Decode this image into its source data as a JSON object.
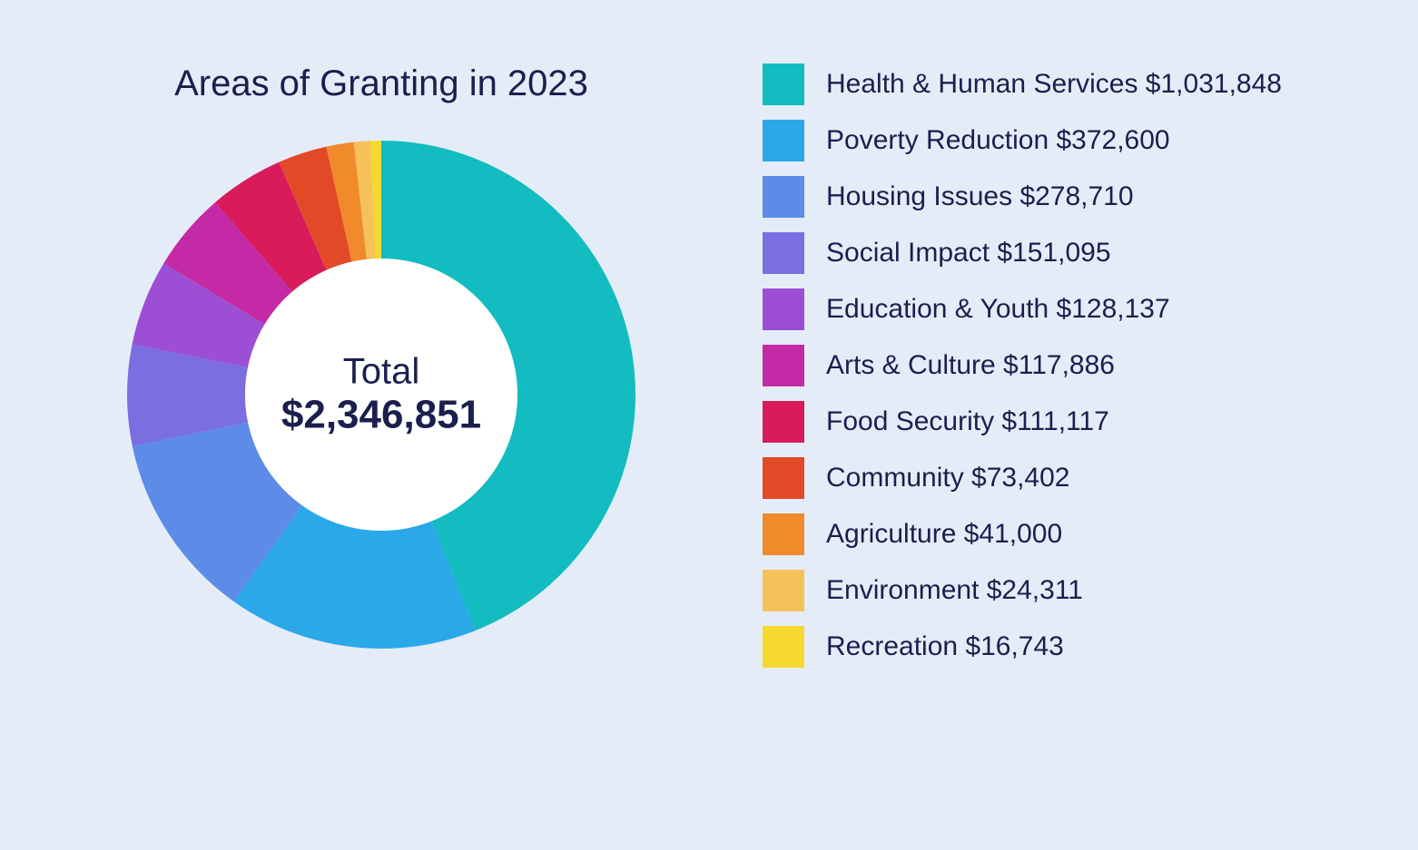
{
  "chart": {
    "type": "donut",
    "title": "Areas of Granting in 2023",
    "title_fontsize": 40,
    "title_color": "#1a1f4f",
    "background_color": "#e4edf7",
    "text_color": "#1a1f4f",
    "legend_fontsize": 30,
    "center_label": "Total",
    "center_value": "$2,346,851",
    "center_label_fontsize": 40,
    "center_value_fontsize": 44,
    "center_value_fontweight": 700,
    "donut_outer_radius": 280,
    "donut_inner_radius": 150,
    "donut_stroke_width": 130,
    "hole_color": "#ffffff",
    "total_raw": 2346851,
    "swatch_size": 46,
    "segments": [
      {
        "label": "Health & Human Services",
        "value_text": "$1,031,848",
        "value": 1031848,
        "color": "#12bcc0"
      },
      {
        "label": "Poverty Reduction",
        "value_text": "$372,600",
        "value": 372600,
        "color": "#2aa8e8"
      },
      {
        "label": "Housing Issues",
        "value_text": "$278,710",
        "value": 278710,
        "color": "#5c8be8"
      },
      {
        "label": "Social Impact",
        "value_text": "$151,095",
        "value": 151095,
        "color": "#7a6ee0"
      },
      {
        "label": "Education & Youth",
        "value_text": "$128,137",
        "value": 128137,
        "color": "#9c4fd4"
      },
      {
        "label": "Arts & Culture",
        "value_text": "$117,886",
        "value": 117886,
        "color": "#c42aa6"
      },
      {
        "label": "Food Security",
        "value_text": "$111,117",
        "value": 111117,
        "color": "#d91a5b"
      },
      {
        "label": "Community",
        "value_text": "$73,402",
        "value": 73402,
        "color": "#e24a27"
      },
      {
        "label": "Agriculture",
        "value_text": "$41,000",
        "value": 41000,
        "color": "#f08a2b"
      },
      {
        "label": "Environment",
        "value_text": "$24,311",
        "value": 24311,
        "color": "#f7c15a"
      },
      {
        "label": "Recreation",
        "value_text": "$16,743",
        "value": 16743,
        "color": "#f6d92f"
      }
    ]
  }
}
